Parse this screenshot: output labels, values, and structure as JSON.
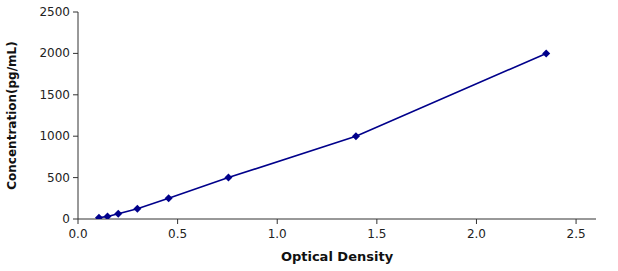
{
  "chart_data": {
    "type": "line",
    "xlabel": "Optical Density",
    "ylabel": "Concentration(pg/mL)",
    "x": [
      0.105,
      0.148,
      0.202,
      0.298,
      0.455,
      0.755,
      1.395,
      2.35
    ],
    "values": [
      15.625,
      31.25,
      62.5,
      125,
      250,
      500,
      1000,
      2000
    ],
    "color": "#00008B",
    "marker": "diamond",
    "line_style": "solid",
    "xlim": [
      0.0,
      2.6
    ],
    "ylim": [
      0,
      2500
    ],
    "xticks": [
      {
        "value": 0,
        "label": "0.0"
      },
      0.5,
      {
        "value": 1,
        "label": "1.0"
      },
      1.5,
      {
        "value": 2,
        "label": "2.0"
      },
      2.5
    ],
    "yticks": [
      0,
      500,
      1000,
      1500,
      2000,
      2500
    ],
    "grid": false
  }
}
